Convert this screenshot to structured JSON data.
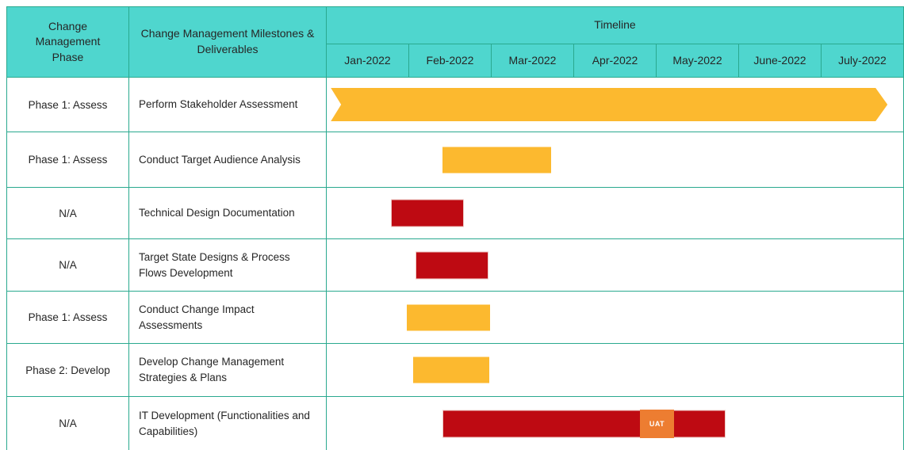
{
  "colors": {
    "header_bg": "#4FD6CE",
    "grid_border": "#2AA98F",
    "bar_orange": "#FCB92F",
    "bar_red": "#BE0A12",
    "uat_orange": "#ED7D31",
    "text": "#262626"
  },
  "table": {
    "headers": {
      "phase": "Change Management Phase",
      "milestones": "Change Management Milestones & Deliverables",
      "timeline": "Timeline",
      "months": [
        "Jan-2022",
        "Feb-2022",
        "Mar-2022",
        "Apr-2022",
        "May-2022",
        "June-2022",
        "July-2022"
      ]
    },
    "rows": [
      {
        "phase": "Phase 1: Assess",
        "milestone": "Perform Stakeholder Assessment"
      },
      {
        "phase": "Phase 1: Assess",
        "milestone": "Conduct Target Audience Analysis"
      },
      {
        "phase": "N/A",
        "milestone": "Technical Design Documentation"
      },
      {
        "phase": "N/A",
        "milestone": "Target State Designs & Process Flows Development"
      },
      {
        "phase": "Phase 1: Assess",
        "milestone": "Conduct Change Impact Assessments"
      },
      {
        "phase": "Phase 2: Develop",
        "milestone": "Develop Change Management Strategies & Plans"
      },
      {
        "phase": "N/A",
        "milestone": "IT Development (Functionalities and Capabilities)"
      }
    ]
  },
  "chart_data": {
    "type": "gantt",
    "title": "Timeline",
    "x_axis": {
      "unit": "month",
      "labels": [
        "Jan-2022",
        "Feb-2022",
        "Mar-2022",
        "Apr-2022",
        "May-2022",
        "June-2022",
        "July-2022"
      ],
      "range_months": [
        0,
        7
      ]
    },
    "grid": true,
    "tasks": [
      {
        "phase": "Phase 1: Assess",
        "name": "Perform Stakeholder Assessment",
        "start_month": 0.05,
        "end_month": 6.8,
        "color": "orange",
        "shape": "arrow"
      },
      {
        "phase": "Phase 1: Assess",
        "name": "Conduct Target Audience Analysis",
        "start_month": 1.4,
        "end_month": 2.72,
        "color": "orange",
        "shape": "rect"
      },
      {
        "phase": "N/A",
        "name": "Technical Design Documentation",
        "start_month": 0.79,
        "end_month": 1.65,
        "color": "red",
        "shape": "rect"
      },
      {
        "phase": "N/A",
        "name": "Target State Designs & Process Flows Development",
        "start_month": 1.09,
        "end_month": 1.95,
        "color": "red",
        "shape": "rect"
      },
      {
        "phase": "Phase 1: Assess",
        "name": "Conduct Change Impact Assessments",
        "start_month": 0.97,
        "end_month": 1.98,
        "color": "orange",
        "shape": "rect"
      },
      {
        "phase": "Phase 2: Develop",
        "name": "Develop Change Management Strategies & Plans",
        "start_month": 1.05,
        "end_month": 1.97,
        "color": "orange",
        "shape": "rect"
      },
      {
        "phase": "N/A",
        "name": "IT Development (Functionalities and Capabilities)",
        "start_month": 1.41,
        "end_month": 4.83,
        "color": "red",
        "shape": "rect",
        "annotation": {
          "label": "UAT",
          "start_month": 3.8,
          "end_month": 4.21
        }
      }
    ]
  }
}
